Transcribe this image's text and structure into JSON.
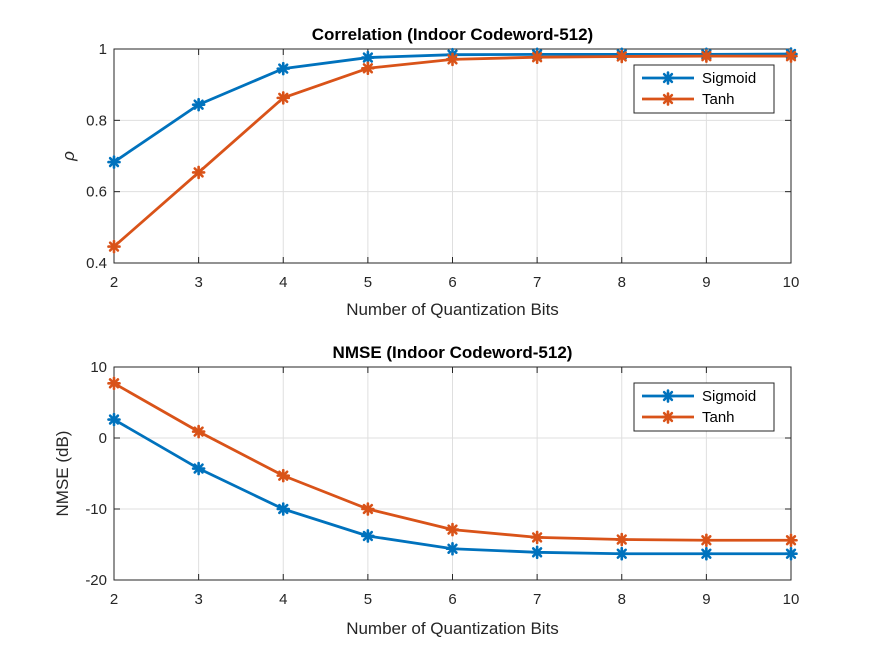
{
  "chart_data": [
    {
      "type": "line",
      "title": "Correlation (Indoor Codeword-512)",
      "xlabel": "Number of Quantization Bits",
      "ylabel": "ρ",
      "x": [
        2,
        3,
        4,
        5,
        6,
        7,
        8,
        9,
        10
      ],
      "xlim": [
        2,
        10
      ],
      "ylim": [
        0.4,
        1
      ],
      "yticks": [
        0.4,
        0.6,
        0.8,
        1
      ],
      "ytick_labels": [
        "0.4",
        "0.6",
        "0.8",
        "1"
      ],
      "grid": true,
      "legend_location": "top-right",
      "series": [
        {
          "name": "Sigmoid",
          "color": "#0072BD",
          "values": [
            0.683,
            0.844,
            0.945,
            0.976,
            0.984,
            0.985,
            0.985,
            0.985,
            0.986
          ]
        },
        {
          "name": "Tanh",
          "color": "#D95319",
          "values": [
            0.446,
            0.654,
            0.863,
            0.946,
            0.971,
            0.977,
            0.979,
            0.98,
            0.98
          ]
        }
      ]
    },
    {
      "type": "line",
      "title": "NMSE (Indoor Codeword-512)",
      "xlabel": "Number of Quantization Bits",
      "ylabel": "NMSE (dB)",
      "x": [
        2,
        3,
        4,
        5,
        6,
        7,
        8,
        9,
        10
      ],
      "xlim": [
        2,
        10
      ],
      "ylim": [
        -20,
        10
      ],
      "yticks": [
        -20,
        -10,
        0,
        10
      ],
      "ytick_labels": [
        "-20",
        "-10",
        "0",
        "10"
      ],
      "grid": true,
      "legend_location": "top-right",
      "series": [
        {
          "name": "Sigmoid",
          "color": "#0072BD",
          "values": [
            2.6,
            -4.3,
            -10.0,
            -13.8,
            -15.6,
            -16.1,
            -16.3,
            -16.3,
            -16.3
          ]
        },
        {
          "name": "Tanh",
          "color": "#D95319",
          "values": [
            7.7,
            0.9,
            -5.3,
            -10.0,
            -12.9,
            -14.0,
            -14.3,
            -14.4,
            -14.4
          ]
        }
      ]
    }
  ]
}
